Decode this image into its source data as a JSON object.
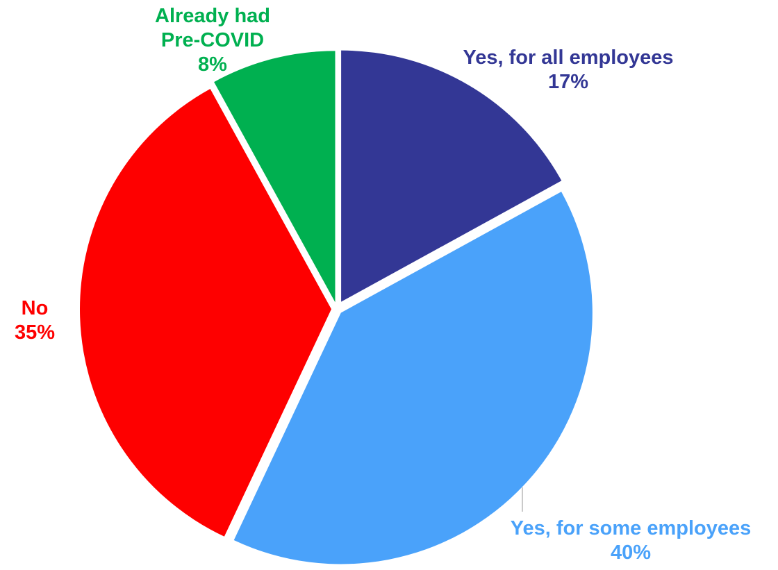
{
  "chart_data": {
    "type": "pie",
    "slices": [
      {
        "name": "Yes, for all employees",
        "value": 17,
        "label": "17%",
        "color": "#333795"
      },
      {
        "name": "Yes, for some employees",
        "value": 40,
        "label": "40%",
        "color": "#4aa2fa"
      },
      {
        "name": "No",
        "value": 35,
        "label": "35%",
        "color": "#fe0000"
      },
      {
        "name": "Already had Pre-COVID",
        "value": 8,
        "label": "8%",
        "color": "#00b050"
      }
    ],
    "label_lines": [
      [
        "Yes, for all employees",
        "17%"
      ],
      [
        "Yes, for some employees",
        "40%"
      ],
      [
        "No",
        "35%"
      ],
      [
        "Already had",
        "Pre-COVID",
        "8%"
      ]
    ],
    "start_angle_deg": 0,
    "direction": "clockwise",
    "exploded": true,
    "legend": "none"
  }
}
